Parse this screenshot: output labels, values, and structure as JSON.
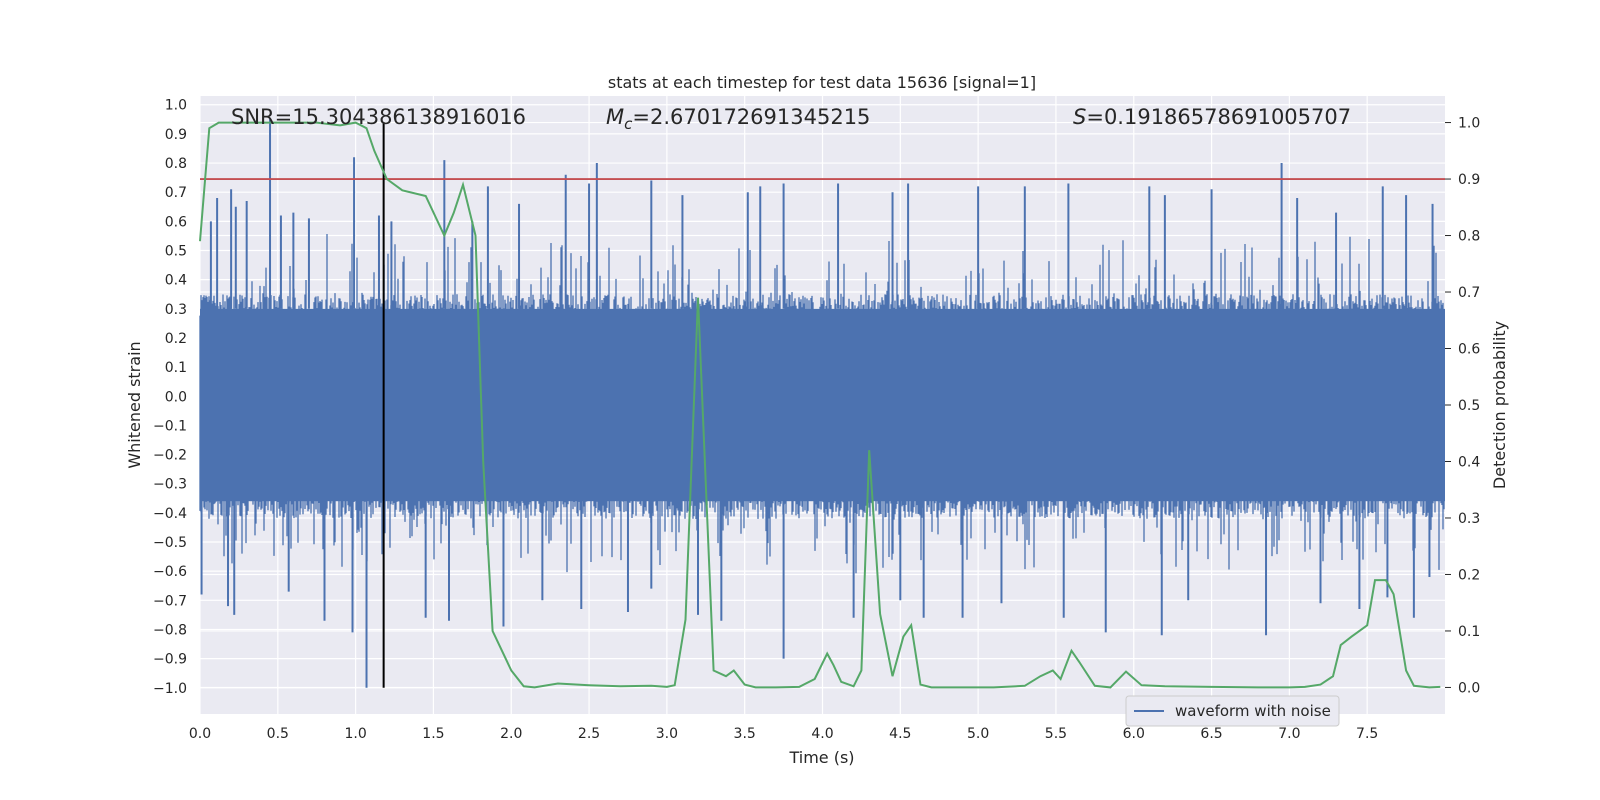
{
  "chart_data": {
    "type": "line",
    "title": "stats at each timestep for test data 15636 [signal=1]",
    "xlabel": "Time (s)",
    "ylabel_left": "Whitened strain",
    "ylabel_right": "Detection probability",
    "xlim": [
      0.0,
      8.0
    ],
    "ylim_left": [
      -1.09,
      1.03
    ],
    "ylim_right": [
      -0.047,
      1.047
    ],
    "x_ticks": [
      "0.0",
      "0.5",
      "1.0",
      "1.5",
      "2.0",
      "2.5",
      "3.0",
      "3.5",
      "4.0",
      "4.5",
      "5.0",
      "5.5",
      "6.0",
      "6.5",
      "7.0",
      "7.5"
    ],
    "y_left_ticks": [
      "1.0",
      "0.9",
      "0.8",
      "0.7",
      "0.6",
      "0.5",
      "0.4",
      "0.3",
      "0.2",
      "0.1",
      "0.0",
      "−0.1",
      "−0.2",
      "−0.3",
      "−0.4",
      "−0.5",
      "−0.6",
      "−0.7",
      "−0.8",
      "−0.9",
      "−1.0"
    ],
    "y_right_ticks": [
      "1.0",
      "0.9",
      "0.8",
      "0.7",
      "0.6",
      "0.5",
      "0.4",
      "0.3",
      "0.2",
      "0.1",
      "0.0"
    ],
    "threshold": 0.9,
    "marker_time": 1.18,
    "annotations": {
      "snr": "SNR=15.304386138916016",
      "mc_symbol": "M",
      "mc_sub": "c",
      "mc_value": "=2.670172691345215",
      "s_symbol": "S",
      "s_value": "=0.19186578691005707"
    },
    "legend": [
      "waveform with noise"
    ],
    "series": [
      {
        "name": "waveform with noise",
        "color": "#4c72b0",
        "sample_rate_hz": 2048,
        "typical_range": [
          -0.42,
          0.35
        ],
        "peaks_up": [
          [
            0.07,
            0.6
          ],
          [
            0.11,
            0.68
          ],
          [
            0.2,
            0.71
          ],
          [
            0.23,
            0.65
          ],
          [
            0.3,
            0.67
          ],
          [
            0.45,
            0.95
          ],
          [
            0.52,
            0.62
          ],
          [
            0.6,
            0.63
          ],
          [
            0.7,
            0.61
          ],
          [
            0.99,
            0.82
          ],
          [
            1.15,
            0.62
          ],
          [
            1.23,
            0.6
          ],
          [
            1.57,
            0.81
          ],
          [
            1.75,
            0.6
          ],
          [
            1.85,
            0.72
          ],
          [
            2.05,
            0.66
          ],
          [
            2.35,
            0.76
          ],
          [
            2.5,
            0.73
          ],
          [
            2.55,
            0.8
          ],
          [
            2.9,
            0.74
          ],
          [
            3.1,
            0.69
          ],
          [
            3.52,
            0.7
          ],
          [
            3.6,
            0.72
          ],
          [
            3.75,
            0.73
          ],
          [
            4.1,
            0.73
          ],
          [
            4.45,
            0.7
          ],
          [
            4.55,
            0.73
          ],
          [
            5.0,
            0.72
          ],
          [
            5.3,
            0.72
          ],
          [
            5.58,
            0.73
          ],
          [
            6.1,
            0.72
          ],
          [
            6.2,
            0.69
          ],
          [
            6.5,
            0.71
          ],
          [
            6.95,
            0.8
          ],
          [
            7.05,
            0.68
          ],
          [
            7.3,
            0.63
          ],
          [
            7.6,
            0.72
          ],
          [
            7.75,
            0.69
          ],
          [
            7.92,
            0.66
          ]
        ],
        "peaks_down": [
          [
            0.01,
            -0.68
          ],
          [
            0.18,
            -0.72
          ],
          [
            0.22,
            -0.75
          ],
          [
            0.57,
            -0.67
          ],
          [
            0.8,
            -0.77
          ],
          [
            0.98,
            -0.81
          ],
          [
            1.07,
            -1.0
          ],
          [
            1.45,
            -0.76
          ],
          [
            1.6,
            -0.77
          ],
          [
            1.95,
            -0.79
          ],
          [
            2.2,
            -0.7
          ],
          [
            2.45,
            -0.73
          ],
          [
            2.75,
            -0.74
          ],
          [
            2.9,
            -0.66
          ],
          [
            3.2,
            -0.75
          ],
          [
            3.35,
            -0.77
          ],
          [
            3.75,
            -0.9
          ],
          [
            4.2,
            -0.76
          ],
          [
            4.5,
            -0.7
          ],
          [
            4.65,
            -0.76
          ],
          [
            4.9,
            -0.76
          ],
          [
            5.15,
            -0.71
          ],
          [
            5.55,
            -0.76
          ],
          [
            5.82,
            -0.81
          ],
          [
            6.18,
            -0.82
          ],
          [
            6.35,
            -0.7
          ],
          [
            6.85,
            -0.82
          ],
          [
            7.2,
            -0.71
          ],
          [
            7.45,
            -0.73
          ],
          [
            7.63,
            -0.69
          ],
          [
            7.8,
            -0.76
          ],
          [
            7.9,
            -0.62
          ]
        ]
      },
      {
        "name": "detection probability",
        "color": "#55a868",
        "axis": "right",
        "x": [
          0.0,
          0.06,
          0.12,
          0.25,
          0.5,
          0.75,
          0.9,
          1.0,
          1.07,
          1.12,
          1.2,
          1.3,
          1.45,
          1.57,
          1.63,
          1.69,
          1.77,
          1.82,
          1.88,
          2.0,
          2.08,
          2.15,
          2.3,
          2.5,
          2.7,
          2.9,
          3.0,
          3.05,
          3.12,
          3.2,
          3.3,
          3.38,
          3.43,
          3.5,
          3.57,
          3.7,
          3.85,
          3.95,
          4.03,
          4.07,
          4.12,
          4.2,
          4.25,
          4.3,
          4.37,
          4.45,
          4.52,
          4.57,
          4.63,
          4.7,
          4.9,
          5.1,
          5.3,
          5.4,
          5.48,
          5.53,
          5.6,
          5.65,
          5.75,
          5.85,
          5.95,
          6.05,
          6.2,
          6.5,
          6.8,
          7.0,
          7.1,
          7.2,
          7.28,
          7.33,
          7.4,
          7.5,
          7.55,
          7.62,
          7.67,
          7.75,
          7.8,
          7.9,
          7.97
        ],
        "y": [
          0.79,
          0.99,
          1.0,
          1.0,
          1.0,
          1.0,
          0.995,
          1.0,
          0.99,
          0.95,
          0.9,
          0.88,
          0.87,
          0.8,
          0.84,
          0.89,
          0.8,
          0.4,
          0.1,
          0.03,
          0.002,
          0.0,
          0.007,
          0.004,
          0.002,
          0.003,
          0.001,
          0.004,
          0.12,
          0.69,
          0.03,
          0.02,
          0.03,
          0.005,
          0.0,
          0.0,
          0.001,
          0.015,
          0.06,
          0.04,
          0.01,
          0.002,
          0.03,
          0.42,
          0.13,
          0.02,
          0.09,
          0.11,
          0.005,
          0.0,
          0.0,
          0.0,
          0.003,
          0.02,
          0.03,
          0.015,
          0.065,
          0.045,
          0.003,
          0.0,
          0.028,
          0.004,
          0.002,
          0.001,
          0.0,
          0.0,
          0.001,
          0.005,
          0.02,
          0.075,
          0.09,
          0.11,
          0.19,
          0.19,
          0.165,
          0.03,
          0.003,
          0.0,
          0.001
        ]
      }
    ]
  }
}
